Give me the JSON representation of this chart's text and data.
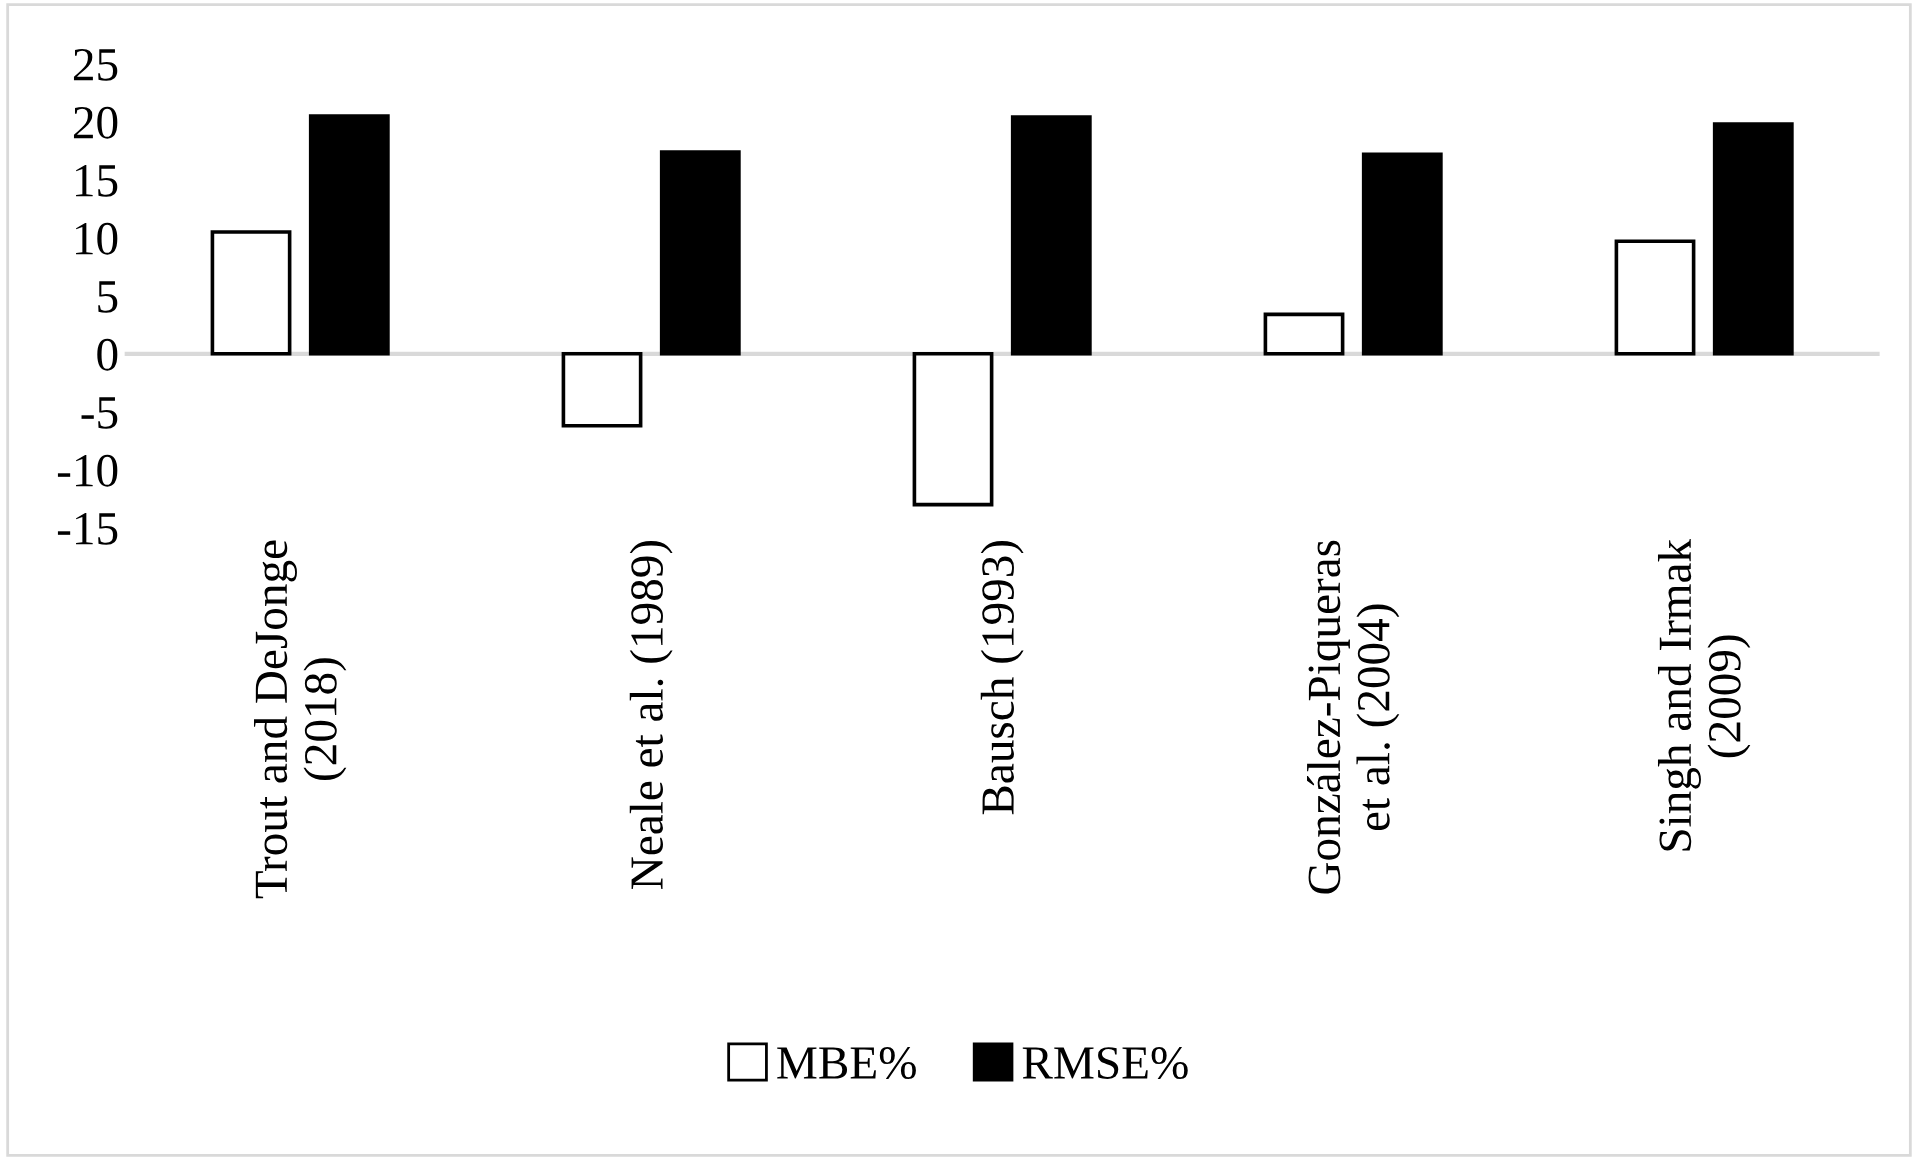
{
  "chart_data": {
    "type": "bar",
    "categories": [
      "Trout and DeJonge\n(2018)",
      "Neale et al. (1989)",
      "Bausch (1993)",
      "González-Piqueras\net al. (2004)",
      "Singh and Irmak\n(2009)"
    ],
    "series": [
      {
        "name": "MBE%",
        "color": "#ffffff",
        "values": [
          10.5,
          -6.2,
          -13,
          3.4,
          9.7
        ]
      },
      {
        "name": "RMSE%",
        "color": "#000000",
        "values": [
          20.5,
          17.4,
          20.4,
          17.2,
          19.8
        ]
      }
    ],
    "ylim": [
      -15,
      25
    ],
    "yticks": [
      -15,
      -10,
      -5,
      0,
      5,
      10,
      15,
      20,
      25
    ],
    "ref_lines": [
      {
        "axis": "y",
        "value": 0,
        "color": "#d9d9d9"
      }
    ],
    "grid": false,
    "legend": "bottom"
  }
}
